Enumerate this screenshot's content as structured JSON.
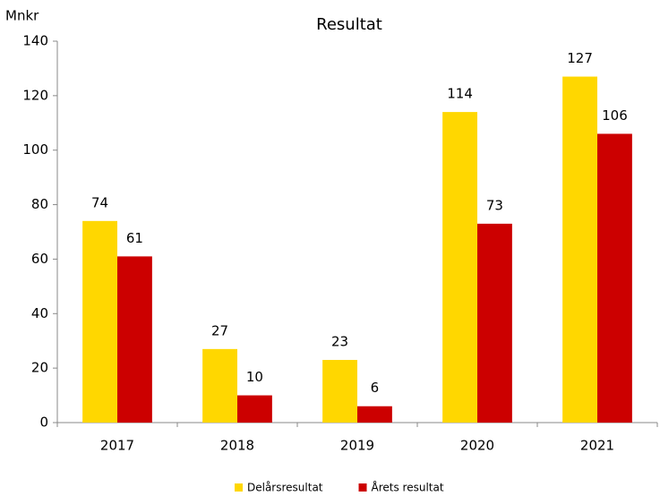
{
  "chart_data": {
    "type": "bar",
    "title": "Resultat",
    "y_label": "Mnkr",
    "categories": [
      "2017",
      "2018",
      "2019",
      "2020",
      "2021"
    ],
    "series": [
      {
        "name": "Delårsresultat",
        "color": "#ffd700",
        "values": [
          74,
          27,
          23,
          114,
          127
        ]
      },
      {
        "name": "Årets resultat",
        "color": "#cc0000",
        "values": [
          61,
          10,
          6,
          73,
          106
        ]
      }
    ],
    "ylim": [
      0,
      140
    ],
    "yticks": [
      0,
      20,
      40,
      60,
      80,
      100,
      120,
      140
    ],
    "grid": false
  }
}
